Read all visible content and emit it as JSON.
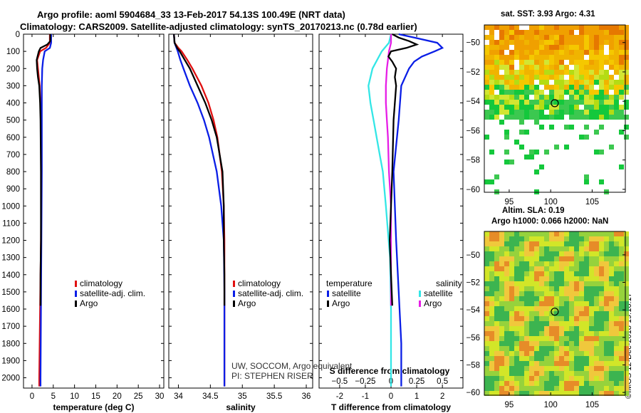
{
  "header": {
    "line1": "Argo profile: aoml 5904684_33 13-Feb-2017 54.13S 100.49E (NRT data)",
    "line2": "Climatology: CARS2009. Satellite-adjusted climatology: synTS_20170213.nc (0.78d earlier)"
  },
  "right_panels": {
    "sst_title": "sat. SST: 3.93 Argo: 4.31",
    "sla_title": "Altim. SLA: 0.19",
    "h_title": "Argo h1000: 0.066 h2000: NaN",
    "credit": "©IMOS 12-Dec-2018 19:16:17"
  },
  "credits": {
    "line1": "UW, SOCCOM, Argo equivalent",
    "line2": "PI: STEPHEN RISER"
  },
  "colors": {
    "climatology": "#e01010",
    "satellite": "#0a1ee6",
    "argo": "#000000",
    "sat_salinity": "#33e6e6",
    "argo_salinity": "#e61ee6"
  },
  "chart_data": [
    {
      "type": "line",
      "xlabel": "temperature (deg C)",
      "ylabel": "depth",
      "xlim": [
        -2,
        31
      ],
      "ylim": [
        2060,
        0
      ],
      "x_ticks": [
        "0",
        "5",
        "10",
        "15",
        "20",
        "25",
        "30"
      ],
      "y_ticks": [
        "0",
        "100",
        "200",
        "300",
        "400",
        "500",
        "600",
        "700",
        "800",
        "900",
        "1000",
        "1100",
        "1200",
        "1300",
        "1400",
        "1500",
        "1600",
        "1700",
        "1800",
        "1900",
        "2000"
      ],
      "legend": [
        "climatology",
        "satellite-adj. clim.",
        "Argo"
      ],
      "series": [
        {
          "name": "climatology",
          "depth": [
            0,
            50,
            80,
            100,
            150,
            200,
            300,
            500,
            800,
            1200,
            1600,
            2000,
            2050
          ],
          "values": [
            4.2,
            4.2,
            3.3,
            1.9,
            1.2,
            1.4,
            1.8,
            2.1,
            2.2,
            2.1,
            1.9,
            1.7,
            1.7
          ]
        },
        {
          "name": "satellite-adj. clim.",
          "depth": [
            0,
            50,
            80,
            100,
            150,
            200,
            300,
            500,
            800,
            1200,
            1600,
            2000,
            2050
          ],
          "values": [
            4.5,
            4.5,
            4.2,
            3.0,
            2.6,
            2.4,
            2.3,
            2.3,
            2.3,
            2.2,
            2.1,
            2.0,
            2.0
          ]
        },
        {
          "name": "Argo",
          "depth": [
            0,
            40,
            60,
            80,
            100,
            150,
            200,
            250,
            300,
            400,
            500,
            800,
            1000,
            1200,
            1400,
            1500,
            1580
          ],
          "values": [
            4.3,
            4.3,
            3.6,
            2.0,
            1.6,
            1.1,
            1.2,
            1.4,
            1.7,
            1.9,
            2.0,
            2.1,
            2.1,
            2.1,
            2.0,
            2.0,
            2.0
          ]
        }
      ]
    },
    {
      "type": "line",
      "xlabel": "salinity",
      "xlim": [
        33.85,
        36.1
      ],
      "ylim": [
        2060,
        0
      ],
      "x_ticks": [
        "34",
        "34.5",
        "35",
        "35.5",
        "36"
      ],
      "legend": [
        "climatology",
        "satellite-adj. clim.",
        "Argo"
      ],
      "series": [
        {
          "name": "climatology",
          "depth": [
            0,
            50,
            80,
            100,
            150,
            200,
            300,
            400,
            500,
            600,
            800,
            1000,
            1200,
            1500,
            2050
          ],
          "values": [
            33.93,
            33.94,
            34.0,
            34.05,
            34.14,
            34.22,
            34.36,
            34.47,
            34.55,
            34.61,
            34.68,
            34.71,
            34.72,
            34.72,
            34.72
          ]
        },
        {
          "name": "satellite-adj. clim.",
          "depth": [
            0,
            50,
            80,
            100,
            150,
            200,
            300,
            400,
            500,
            600,
            800,
            1000,
            1200,
            1500,
            2050
          ],
          "values": [
            33.93,
            33.94,
            33.97,
            33.99,
            34.03,
            34.08,
            34.18,
            34.3,
            34.4,
            34.48,
            34.6,
            34.67,
            34.71,
            34.72,
            34.72
          ]
        },
        {
          "name": "Argo",
          "depth": [
            0,
            50,
            80,
            100,
            150,
            200,
            300,
            400,
            500,
            600,
            800,
            1000,
            1200,
            1400,
            1580
          ],
          "values": [
            33.93,
            33.94,
            33.98,
            34.02,
            34.1,
            34.18,
            34.3,
            34.42,
            34.52,
            34.6,
            34.69,
            34.71,
            34.71,
            34.72,
            34.72
          ]
        }
      ]
    },
    {
      "type": "line",
      "xlabel": "T difference from climatology",
      "xlabel_top": "S difference from climatology",
      "xlim": [
        -2.8,
        2.8
      ],
      "ylim": [
        2060,
        0
      ],
      "x_ticks": [
        "-2",
        "-1",
        "0",
        "1",
        "2"
      ],
      "x_ticks_top": [
        "-0.5",
        "-0.25",
        "0",
        "0.25",
        "0.5"
      ],
      "legend_groups": [
        {
          "title": "temperature",
          "items": [
            "satellite",
            "Argo"
          ]
        },
        {
          "title": "salinity",
          "items": [
            "satellite",
            "Argo"
          ]
        }
      ],
      "series": [
        {
          "name": "temperature satellite",
          "depth": [
            0,
            20,
            50,
            80,
            100,
            130,
            160,
            200,
            300,
            500,
            800,
            1000,
            1200,
            1500,
            1800,
            2050
          ],
          "values": [
            0.3,
            0.9,
            1.8,
            2.0,
            1.7,
            1.2,
            0.9,
            0.7,
            0.4,
            0.3,
            0.1,
            0.15,
            0.2,
            0.3,
            0.4,
            0.4
          ]
        },
        {
          "name": "temperature Argo",
          "depth": [
            0,
            20,
            40,
            60,
            80,
            100,
            130,
            160,
            200,
            250,
            300,
            500,
            800,
            1000,
            1200,
            1400,
            1580
          ],
          "values": [
            0.05,
            0.3,
            0.7,
            1.0,
            0.6,
            0.0,
            -0.1,
            0.05,
            0.2,
            0.15,
            0.2,
            0.1,
            0.05,
            0.0,
            -0.05,
            0.0,
            0.05
          ]
        },
        {
          "name": "salinity satellite",
          "depth": [
            0,
            50,
            100,
            200,
            300,
            400,
            500,
            600,
            700,
            800,
            1000,
            1300,
            1600,
            2050
          ],
          "values": [
            0.0,
            -0.02,
            -0.09,
            -0.18,
            -0.22,
            -0.2,
            -0.17,
            -0.14,
            -0.11,
            -0.08,
            -0.05,
            -0.01,
            0.0,
            0.0
          ]
        },
        {
          "name": "salinity Argo",
          "depth": [
            0,
            50,
            100,
            150,
            200,
            300,
            400,
            500,
            600,
            800,
            1000,
            1200,
            1400,
            1580
          ],
          "values": [
            0.0,
            0.0,
            -0.02,
            -0.03,
            -0.04,
            -0.05,
            -0.05,
            -0.04,
            -0.03,
            -0.02,
            0.0,
            0.0,
            0.0,
            0.0
          ]
        }
      ]
    },
    {
      "type": "heatmap",
      "title": "sat. SST: 3.93 Argo: 4.31",
      "x_ticks": [
        "95",
        "100",
        "105"
      ],
      "y_ticks": [
        "-50",
        "-52",
        "-54",
        "-56",
        "-58",
        "-60"
      ],
      "xlim": [
        92,
        109
      ],
      "ylim": [
        -60.2,
        -48.8
      ],
      "argo_position": [
        100.49,
        -54.13
      ]
    },
    {
      "type": "heatmap",
      "title": "Altim. SLA: 0.19",
      "x_ticks": [
        "95",
        "100",
        "105"
      ],
      "y_ticks": [
        "-50",
        "-52",
        "-54",
        "-56",
        "-58",
        "-60"
      ],
      "xlim": [
        92,
        109
      ],
      "ylim": [
        -60.2,
        -48.3
      ],
      "argo_position": [
        100.49,
        -54.13
      ]
    }
  ]
}
